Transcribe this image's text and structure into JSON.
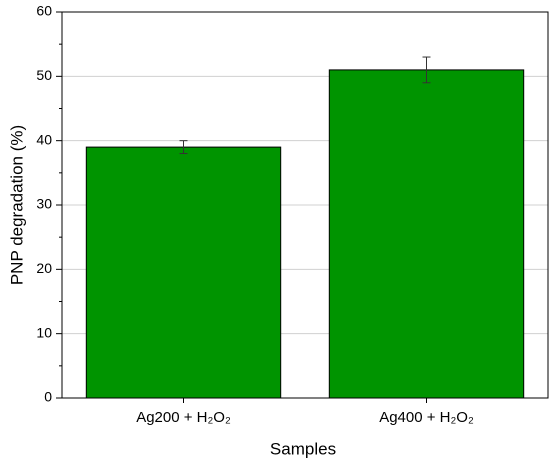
{
  "chart_data": {
    "type": "bar",
    "categories": [
      "Ag200 + H₂O₂",
      "Ag400 + H₂O₂"
    ],
    "values": [
      39,
      51
    ],
    "errors": [
      1,
      2
    ],
    "color": "#009400",
    "ylim": [
      0,
      60
    ],
    "yticks": [
      0,
      10,
      20,
      30,
      40,
      50,
      60
    ],
    "yminorticks": [
      5,
      15,
      25,
      35,
      45,
      55
    ],
    "grid": true,
    "xlabel": "Samples",
    "ylabel": "PNP degradation (%)"
  }
}
